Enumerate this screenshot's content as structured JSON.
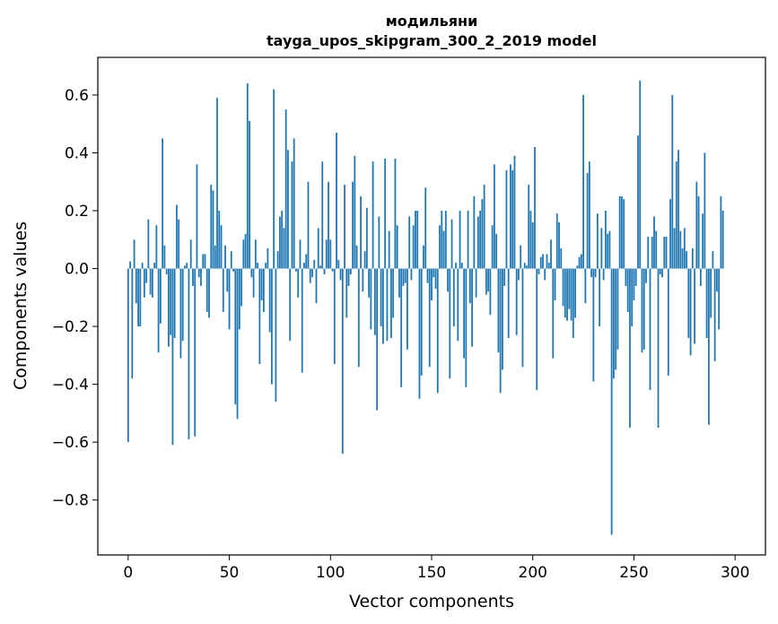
{
  "chart_data": {
    "type": "bar",
    "title": "модильяни",
    "subtitle": "tayga_upos_skipgram_300_2_2019 model",
    "xlabel": "Vector components",
    "ylabel": "Components values",
    "xlim": [
      -15,
      315
    ],
    "ylim": [
      -0.99,
      0.73
    ],
    "xticks": [
      0,
      50,
      100,
      150,
      200,
      250,
      300
    ],
    "xtick_labels": [
      "0",
      "50",
      "100",
      "150",
      "200",
      "250",
      "300"
    ],
    "yticks": [
      -0.8,
      -0.6,
      -0.4,
      -0.2,
      0.0,
      0.2,
      0.4,
      0.6
    ],
    "ytick_labels": [
      "−0.8",
      "−0.6",
      "−0.4",
      "−0.2",
      "0.0",
      "0.2",
      "0.4",
      "0.6"
    ],
    "color": "#1f77b4",
    "values": [
      -0.6,
      0.025,
      -0.38,
      0.1,
      -0.12,
      -0.2,
      -0.2,
      0.02,
      -0.1,
      -0.05,
      0.17,
      -0.09,
      -0.1,
      0.02,
      0.15,
      -0.29,
      -0.19,
      0.45,
      0.08,
      -0.02,
      -0.27,
      -0.23,
      -0.61,
      -0.24,
      0.22,
      0.17,
      -0.31,
      -0.25,
      0.01,
      0.02,
      -0.59,
      0.1,
      -0.06,
      -0.58,
      0.36,
      -0.03,
      -0.06,
      0.05,
      0.05,
      -0.15,
      -0.17,
      0.29,
      0.27,
      0.08,
      0.59,
      0.2,
      0.15,
      -0.15,
      0.08,
      -0.08,
      -0.21,
      0.06,
      -0.01,
      -0.47,
      -0.52,
      -0.21,
      -0.13,
      0.1,
      0.12,
      0.64,
      0.51,
      -0.03,
      -0.1,
      0.1,
      0.02,
      -0.33,
      -0.11,
      -0.15,
      0.02,
      0.07,
      -0.22,
      -0.4,
      0.62,
      -0.46,
      0.06,
      0.18,
      0.2,
      0.14,
      0.55,
      0.41,
      -0.25,
      0.37,
      0.45,
      -0.01,
      -0.1,
      0.1,
      -0.36,
      0.02,
      0.05,
      0.3,
      -0.05,
      -0.03,
      0.03,
      -0.12,
      0.14,
      0.01,
      0.37,
      -0.02,
      0.1,
      0.3,
      0.1,
      -0.01,
      -0.33,
      0.47,
      0.03,
      -0.04,
      -0.64,
      0.29,
      -0.17,
      -0.06,
      -0.02,
      0.3,
      0.39,
      0.08,
      -0.34,
      0.25,
      -0.08,
      0.06,
      0.21,
      -0.1,
      -0.21,
      0.37,
      -0.23,
      -0.49,
      0.18,
      -0.2,
      -0.26,
      0.38,
      -0.25,
      0.13,
      -0.24,
      -0.17,
      0.38,
      0.15,
      -0.1,
      -0.41,
      -0.06,
      -0.05,
      -0.28,
      0.18,
      -0.04,
      0.15,
      0.2,
      0.2,
      -0.45,
      -0.37,
      0.08,
      0.28,
      -0.05,
      -0.34,
      -0.11,
      -0.03,
      -0.07,
      -0.43,
      0.15,
      0.2,
      0.13,
      0.2,
      -0.08,
      -0.38,
      0.17,
      -0.2,
      0.02,
      -0.25,
      0.2,
      0.02,
      -0.31,
      -0.41,
      0.2,
      -0.12,
      -0.27,
      0.25,
      -0.1,
      0.18,
      0.2,
      0.24,
      0.29,
      -0.09,
      -0.08,
      -0.16,
      0.15,
      0.36,
      0.12,
      -0.29,
      -0.43,
      -0.35,
      -0.06,
      0.34,
      -0.24,
      0.36,
      0.34,
      0.39,
      -0.23,
      -0.04,
      0.08,
      -0.34,
      0.02,
      0.01,
      0.29,
      0.2,
      0.16,
      0.42,
      -0.42,
      -0.02,
      0.04,
      0.05,
      -0.04,
      0.05,
      0.02,
      0.1,
      -0.31,
      -0.11,
      0.19,
      0.16,
      0.07,
      -0.13,
      -0.17,
      -0.18,
      -0.14,
      -0.18,
      -0.24,
      -0.17,
      0.01,
      0.04,
      0.05,
      0.6,
      -0.12,
      0.33,
      0.37,
      -0.03,
      -0.39,
      -0.03,
      0.19,
      -0.2,
      0.14,
      -0.04,
      0.2,
      0.12,
      0.13,
      -0.92,
      -0.38,
      -0.35,
      -0.28,
      0.25,
      0.25,
      0.24,
      -0.06,
      -0.15,
      -0.55,
      -0.2,
      -0.11,
      -0.06,
      0.46,
      0.65,
      -0.29,
      -0.28,
      -0.05,
      0.11,
      -0.42,
      0.11,
      0.18,
      0.13,
      -0.55,
      -0.02,
      -0.03,
      0.11,
      0.11,
      -0.37,
      0.24,
      0.6,
      0.14,
      0.37,
      0.41,
      0.13,
      0.07,
      0.14,
      0.06,
      -0.24,
      -0.3,
      0.07,
      -0.26,
      0.3,
      0.25,
      -0.06,
      0.19,
      0.4,
      -0.24,
      -0.54,
      -0.17,
      0.06,
      -0.32,
      -0.08,
      -0.21,
      0.25,
      0.2
    ]
  }
}
